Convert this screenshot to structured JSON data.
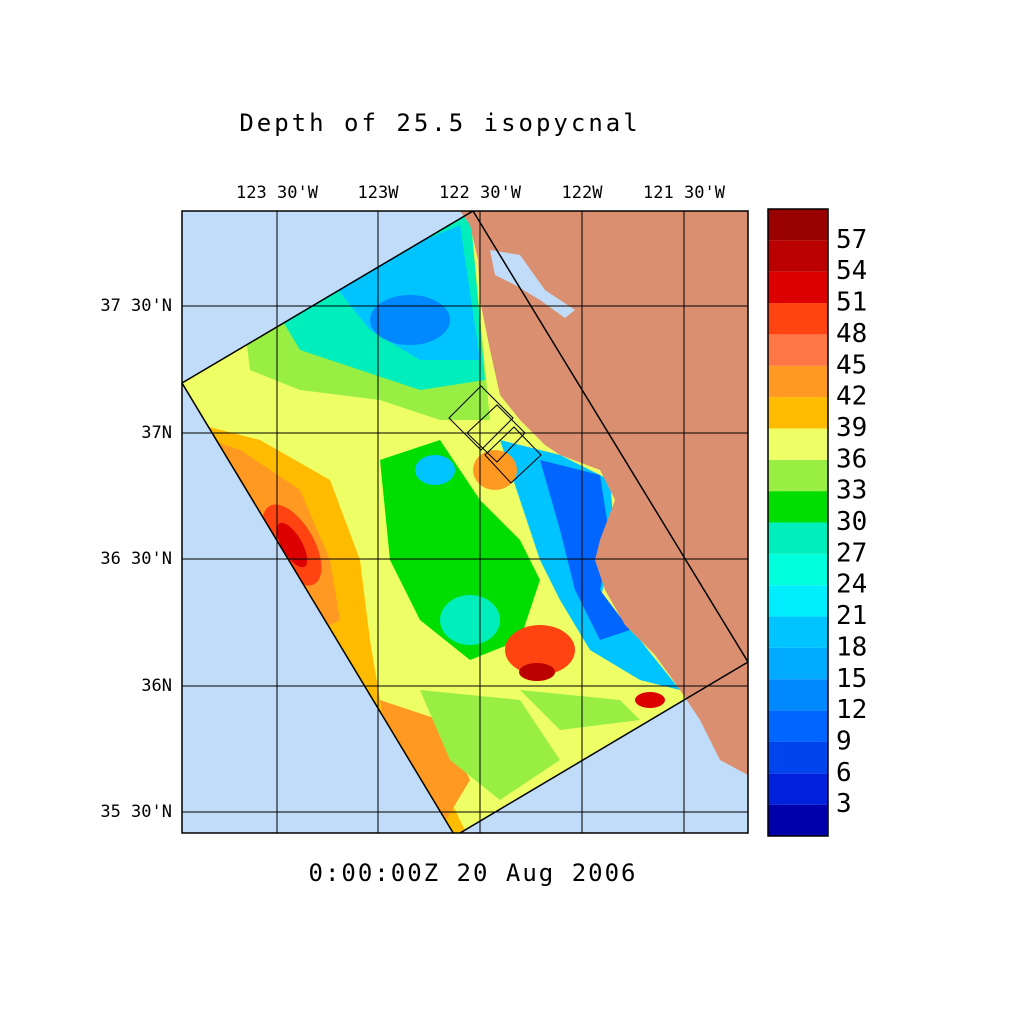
{
  "title": "Depth of 25.5 isopycnal",
  "lon_labels": [
    "123 30'W",
    "123W",
    "122 30'W",
    "122W",
    "121 30'W"
  ],
  "lat_labels": [
    "37 30'N",
    "37N",
    "36 30'N",
    "36N",
    "35 30'N"
  ],
  "timestamp": "0:00:00Z  20 Aug 2006",
  "colorbar": {
    "ticks": [
      3,
      6,
      9,
      12,
      15,
      18,
      21,
      24,
      27,
      30,
      33,
      36,
      39,
      42,
      45,
      48,
      51,
      54,
      57
    ],
    "colors": [
      "#0000aa",
      "#0022dd",
      "#0044ee",
      "#0066ff",
      "#0088ff",
      "#00aaff",
      "#00c4ff",
      "#00eeff",
      "#00ffdd",
      "#00eebb",
      "#00dd00",
      "#99ee44",
      "#eeff66",
      "#ffbb00",
      "#ff9922",
      "#ff7744",
      "#ff4411",
      "#dd0000",
      "#bb0000",
      "#990000"
    ]
  }
}
